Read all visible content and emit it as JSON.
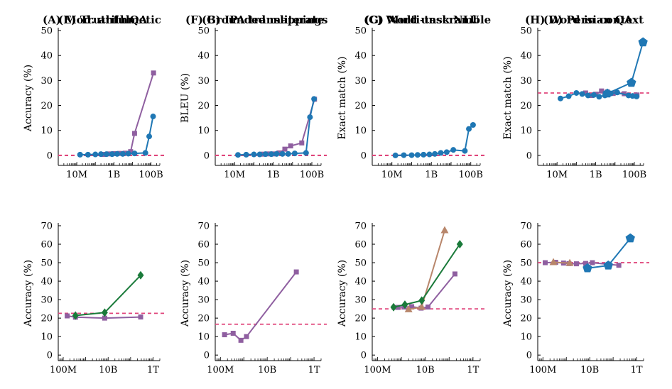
{
  "colors": {
    "purple": "#8f5fa0",
    "blue": "#1f77b4",
    "green": "#1a7a3a",
    "brown": "#b8866b",
    "baseline": "#e0457b"
  },
  "chart_data": [
    {
      "type": "line",
      "title": "(A) Mod. arithmetic",
      "ylabel": "Accuracy (%)",
      "xscale": "log",
      "xlim": [
        1000000,
        300000000000
      ],
      "ylim": [
        -4,
        50
      ],
      "yticks": [
        0,
        10,
        20,
        30,
        40,
        50
      ],
      "xticks": [
        {
          "value": 10000000,
          "label": "10M"
        },
        {
          "value": 1000000000,
          "label": "1B"
        },
        {
          "value": 100000000000,
          "label": "100B"
        }
      ],
      "baseline": 0,
      "series": [
        {
          "color": "purple",
          "marker": "square",
          "x": [
            300000000,
            600000000,
            1000000000,
            2000000000,
            4000000000,
            8000000000,
            13000000000,
            137000000000
          ],
          "y": [
            0.4,
            0.6,
            0.7,
            0.8,
            0.9,
            1.5,
            8.8,
            33.0
          ]
        },
        {
          "color": "blue",
          "marker": "circle",
          "x": [
            15000000,
            40000000,
            100000000,
            200000000,
            400000000,
            800000000,
            1500000000,
            3000000000,
            6000000000,
            13000000000,
            50000000000,
            80000000000,
            130000000000
          ],
          "y": [
            0.3,
            0.3,
            0.4,
            0.5,
            0.5,
            0.5,
            0.6,
            0.6,
            0.7,
            0.8,
            1.0,
            7.6,
            15.6
          ]
        }
      ]
    },
    {
      "type": "line",
      "title": "(B) IPA transliterate",
      "ylabel": "BLEU (%)",
      "xscale": "log",
      "xlim": [
        1000000,
        300000000000
      ],
      "ylim": [
        -4,
        50
      ],
      "yticks": [
        0,
        10,
        20,
        30,
        40,
        50
      ],
      "xticks": [
        {
          "value": 10000000,
          "label": "10M"
        },
        {
          "value": 1000000000,
          "label": "1B"
        },
        {
          "value": 100000000000,
          "label": "100B"
        }
      ],
      "baseline": 0,
      "series": [
        {
          "color": "purple",
          "marker": "square",
          "x": [
            300000000,
            600000000,
            1000000000,
            2000000000,
            4000000000,
            8000000000,
            30000000000,
            137000000000
          ],
          "y": [
            0.5,
            0.6,
            0.6,
            1.0,
            2.5,
            3.8,
            5.0,
            22.5
          ]
        },
        {
          "color": "blue",
          "marker": "circle",
          "x": [
            15000000,
            40000000,
            100000000,
            200000000,
            400000000,
            800000000,
            1500000000,
            3000000000,
            6000000000,
            13000000000,
            50000000000,
            80000000000,
            130000000000
          ],
          "y": [
            0.2,
            0.3,
            0.4,
            0.4,
            0.5,
            0.5,
            0.6,
            0.6,
            0.6,
            0.8,
            1.0,
            15.3,
            22.6
          ]
        }
      ]
    },
    {
      "type": "line",
      "title": "(C) Word unscramble",
      "ylabel": "Exact match (%)",
      "xscale": "log",
      "xlim": [
        1000000,
        300000000000
      ],
      "ylim": [
        -4,
        50
      ],
      "yticks": [
        0,
        10,
        20,
        30,
        40,
        50
      ],
      "xticks": [
        {
          "value": 10000000,
          "label": "10M"
        },
        {
          "value": 1000000000,
          "label": "1B"
        },
        {
          "value": 100000000000,
          "label": "100B"
        }
      ],
      "baseline": 0,
      "series": [
        {
          "color": "blue",
          "marker": "circle",
          "x": [
            15000000,
            40000000,
            100000000,
            200000000,
            400000000,
            800000000,
            1500000000,
            3000000000,
            6000000000,
            13000000000,
            50000000000,
            80000000000,
            130000000000
          ],
          "y": [
            0.0,
            0.1,
            0.1,
            0.2,
            0.3,
            0.4,
            0.6,
            1.0,
            1.3,
            2.2,
            1.8,
            10.6,
            12.2
          ]
        }
      ]
    },
    {
      "type": "line",
      "title": "(D) Persian QA",
      "ylabel": "Exact match (%)",
      "xscale": "log",
      "xlim": [
        1000000,
        300000000000
      ],
      "ylim": [
        -4,
        50
      ],
      "yticks": [
        0,
        10,
        20,
        30,
        40,
        50
      ],
      "xticks": [
        {
          "value": 10000000,
          "label": "10M"
        },
        {
          "value": 1000000000,
          "label": "1B"
        },
        {
          "value": 100000000000,
          "label": "100B"
        }
      ],
      "baseline": 25,
      "series": [
        {
          "color": "purple",
          "marker": "square",
          "x": [
            300000000,
            600000000,
            1000000000,
            2000000000,
            4000000000,
            8000000000,
            30000000000,
            137000000000
          ],
          "y": [
            25.0,
            24.0,
            24.5,
            25.8,
            25.4,
            24.8,
            24.7,
            24.2
          ]
        },
        {
          "color": "blue",
          "marker": "circle",
          "x": [
            15000000,
            40000000,
            100000000,
            200000000,
            400000000,
            800000000,
            1500000000,
            3000000000,
            6000000000,
            13000000000,
            50000000000,
            80000000000,
            130000000000
          ],
          "y": [
            22.8,
            23.7,
            25.0,
            24.6,
            24.0,
            24.2,
            23.5,
            24.0,
            24.8,
            25.2,
            24.0,
            23.8,
            23.6
          ]
        },
        {
          "color": "blue",
          "marker": "pentagon",
          "x": [
            4000000000,
            70000000000,
            280000000000
          ],
          "y": [
            24.8,
            29.1,
            45.3
          ]
        }
      ]
    },
    {
      "type": "line",
      "title": "(E) TruthfulQA",
      "ylabel": "Accuracy (%)",
      "xscale": "log",
      "xlim": [
        60000000,
        2000000000000
      ],
      "ylim": [
        -3,
        70
      ],
      "yticks": [
        0,
        10,
        20,
        30,
        40,
        50,
        60,
        70
      ],
      "xticks": [
        {
          "value": 100000000,
          "label": "100M"
        },
        {
          "value": 10000000000,
          "label": "10B"
        },
        {
          "value": 1000000000000,
          "label": "1T"
        }
      ],
      "baseline": 22.6,
      "series": [
        {
          "color": "purple",
          "marker": "square",
          "x": [
            150000000,
            350000000,
            7000000000,
            280000000000
          ],
          "y": [
            21.2,
            20.5,
            20.0,
            20.6
          ]
        },
        {
          "color": "green",
          "marker": "diamond",
          "x": [
            350000000,
            7000000000,
            280000000000
          ],
          "y": [
            21.4,
            23.0,
            43.2
          ]
        }
      ]
    },
    {
      "type": "line",
      "title": "(F) Grounded mappings",
      "ylabel": "Accuracy (%)",
      "xscale": "log",
      "xlim": [
        60000000,
        2000000000000
      ],
      "ylim": [
        -3,
        70
      ],
      "yticks": [
        0,
        10,
        20,
        30,
        40,
        50,
        60,
        70
      ],
      "xticks": [
        {
          "value": 100000000,
          "label": "100M"
        },
        {
          "value": 10000000000,
          "label": "10B"
        },
        {
          "value": 1000000000000,
          "label": "1T"
        }
      ],
      "baseline": 16.7,
      "series": [
        {
          "color": "purple",
          "marker": "square",
          "x": [
            150000000,
            350000000,
            750000000,
            1300000000,
            175000000000
          ],
          "y": [
            11.0,
            11.8,
            8.0,
            10.0,
            45.0
          ]
        }
      ]
    },
    {
      "type": "line",
      "title": "(G) Multi-task NLU",
      "ylabel": "Accuracy (%)",
      "xscale": "log",
      "xlim": [
        60000000,
        2000000000000
      ],
      "ylim": [
        -3,
        70
      ],
      "yticks": [
        0,
        10,
        20,
        30,
        40,
        50,
        60,
        70
      ],
      "xticks": [
        {
          "value": 100000000,
          "label": "100M"
        },
        {
          "value": 10000000000,
          "label": "10B"
        },
        {
          "value": 1000000000000,
          "label": "1T"
        }
      ],
      "baseline": 25,
      "series": [
        {
          "color": "purple",
          "marker": "square",
          "x": [
            700000000,
            1300000000,
            2700000000,
            6700000000,
            13000000000,
            175000000000
          ],
          "y": [
            25.8,
            26.0,
            26.2,
            25.4,
            26.0,
            43.9
          ]
        },
        {
          "color": "brown",
          "marker": "triangle",
          "x": [
            2000000000,
            7000000000,
            65000000000
          ],
          "y": [
            24.7,
            26.0,
            67.5
          ]
        },
        {
          "color": "green",
          "marker": "diamond",
          "x": [
            470000000,
            1400000000,
            7100000000,
            280000000000
          ],
          "y": [
            25.9,
            27.3,
            29.5,
            60.0
          ]
        }
      ]
    },
    {
      "type": "line",
      "title": "(H) Word in context",
      "ylabel": "Accuracy (%)",
      "xscale": "log",
      "xlim": [
        60000000,
        2000000000000
      ],
      "ylim": [
        -3,
        70
      ],
      "yticks": [
        0,
        10,
        20,
        30,
        40,
        50,
        60,
        70
      ],
      "xticks": [
        {
          "value": 100000000,
          "label": "100M"
        },
        {
          "value": 10000000000,
          "label": "10B"
        },
        {
          "value": 1000000000000,
          "label": "1T"
        }
      ],
      "baseline": 50,
      "series": [
        {
          "color": "purple",
          "marker": "square",
          "x": [
            125000000,
            350000000,
            760000000,
            1300000000,
            2700000000,
            6700000000,
            13000000000,
            175000000000
          ],
          "y": [
            50.0,
            50.2,
            49.8,
            49.5,
            49.4,
            49.6,
            50.0,
            48.6
          ]
        },
        {
          "color": "brown",
          "marker": "triangle",
          "x": [
            280000000,
            1400000000
          ],
          "y": [
            50.2,
            49.8
          ]
        },
        {
          "color": "blue",
          "marker": "pentagon",
          "x": [
            8000000000,
            62000000000,
            540000000000
          ],
          "y": [
            47.0,
            48.5,
            63.2
          ]
        }
      ]
    }
  ]
}
